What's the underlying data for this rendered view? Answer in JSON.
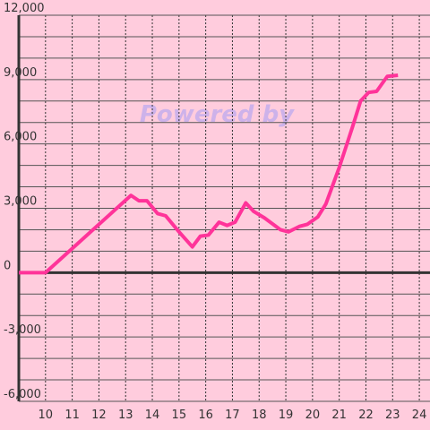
{
  "chart_data": {
    "type": "line",
    "watermark": "Powered by",
    "x": [
      9,
      10,
      13.2,
      13.5,
      13.8,
      14.2,
      14.5,
      15,
      15.5,
      15.8,
      16.1,
      16.5,
      16.8,
      17.1,
      17.5,
      17.8,
      18.2,
      18.8,
      19.1,
      19.5,
      19.8,
      20.2,
      20.5,
      21,
      21.5,
      21.8,
      22.1,
      22.4,
      22.8,
      23.2
    ],
    "series": [
      {
        "color": "#ff3399",
        "values": [
          0,
          0,
          3600,
          3350,
          3350,
          2750,
          2650,
          1900,
          1200,
          1700,
          1750,
          2350,
          2200,
          2350,
          3250,
          2850,
          2550,
          2000,
          1900,
          2150,
          2250,
          2600,
          3200,
          4900,
          6800,
          8000,
          8400,
          8450,
          9150,
          9200
        ]
      }
    ],
    "xlim": [
      9,
      24.4
    ],
    "ylim": [
      -6000,
      12000
    ],
    "xticks": [
      10,
      11,
      12,
      13,
      14,
      15,
      16,
      17,
      18,
      19,
      20,
      21,
      22,
      23,
      24
    ],
    "yticks": [
      {
        "value": -6000,
        "label": "-6,000"
      },
      {
        "value": -3000,
        "label": "-3,000"
      },
      0,
      {
        "value": 3000,
        "label": "3,000"
      },
      {
        "value": 6000,
        "label": "6,000"
      },
      {
        "value": 9000,
        "label": "9,000"
      },
      {
        "value": 12000,
        "label": "12,000"
      }
    ],
    "y_gridlines": [
      -5000,
      -4000,
      -2000,
      -1000,
      1000,
      2000,
      4000,
      5000,
      7000,
      8000,
      10000,
      11000
    ]
  }
}
